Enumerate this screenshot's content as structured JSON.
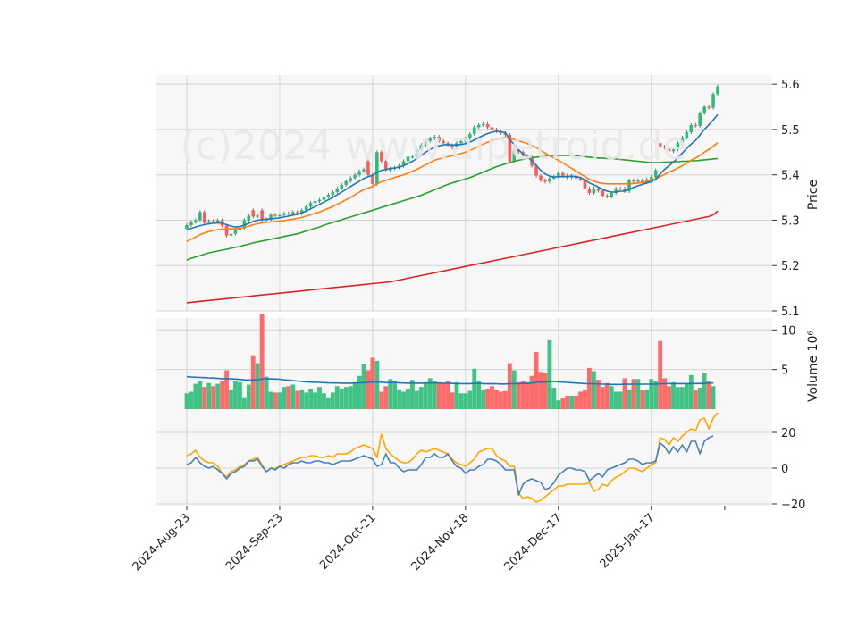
{
  "chart_data": {
    "type": "candlestick",
    "watermark": "(c)2024 www.aipetroid.de",
    "colors": {
      "up": "#2bbd78",
      "down": "#ff5a5a",
      "ma_short": "#1f77b4",
      "ma_mid": "#ff7f0e",
      "ma_long": "#2ca02c",
      "ma_longest": "#d62728",
      "volume_ma": "#1f77b4",
      "osc_fast": "#4682b4",
      "osc_slow": "#ffa500",
      "panel_bg": "#f7f7f7",
      "grid": "#d4d4d4"
    },
    "x_tick_labels": [
      "2024-Aug-23",
      "2024-Sep-23",
      "2024-Oct-21",
      "2024-Nov-18",
      "2024-Dec-17",
      "2025-Jan-17"
    ],
    "x_tick_indices": [
      0,
      21,
      42,
      63,
      84,
      105
    ],
    "price_panel": {
      "ylabel": "Price",
      "ylim": [
        5.1,
        5.62
      ],
      "yticks": [
        5.1,
        5.2,
        5.3,
        5.4,
        5.5,
        5.6
      ],
      "close": [
        5.289,
        5.296,
        5.3,
        5.318,
        5.294,
        5.298,
        5.296,
        5.3,
        5.288,
        5.266,
        5.27,
        5.278,
        5.282,
        5.3,
        5.31,
        5.308,
        5.31,
        5.3,
        5.302,
        5.312,
        5.311,
        5.311,
        5.315,
        5.314,
        5.318,
        5.315,
        5.322,
        5.33,
        5.338,
        5.342,
        5.345,
        5.352,
        5.356,
        5.362,
        5.37,
        5.378,
        5.386,
        5.393,
        5.4,
        5.408,
        5.412,
        5.4,
        5.38,
        5.45,
        5.43,
        5.41,
        5.414,
        5.416,
        5.42,
        5.43,
        5.44,
        5.44,
        5.455,
        5.466,
        5.475,
        5.48,
        5.484,
        5.475,
        5.47,
        5.465,
        5.46,
        5.47,
        5.474,
        5.48,
        5.49,
        5.505,
        5.51,
        5.512,
        5.505,
        5.5,
        5.496,
        5.492,
        5.488,
        5.43,
        5.455,
        5.45,
        5.442,
        5.44,
        5.42,
        5.398,
        5.388,
        5.385,
        5.392,
        5.396,
        5.404,
        5.398,
        5.394,
        5.398,
        5.392,
        5.39,
        5.37,
        5.36,
        5.37,
        5.365,
        5.354,
        5.352,
        5.36,
        5.37,
        5.37,
        5.364,
        5.388,
        5.385,
        5.388,
        5.383,
        5.39,
        5.395,
        5.41,
        5.462,
        5.46,
        5.452,
        5.456,
        5.47,
        5.482,
        5.494,
        5.51,
        5.508,
        5.536,
        5.55,
        5.548,
        5.578,
        5.595
      ],
      "open": [
        5.281,
        5.289,
        5.296,
        5.3,
        5.318,
        5.294,
        5.298,
        5.296,
        5.3,
        5.288,
        5.266,
        5.27,
        5.278,
        5.282,
        5.3,
        5.322,
        5.308,
        5.322,
        5.3,
        5.302,
        5.312,
        5.311,
        5.311,
        5.315,
        5.314,
        5.318,
        5.315,
        5.322,
        5.33,
        5.338,
        5.342,
        5.345,
        5.352,
        5.356,
        5.362,
        5.37,
        5.378,
        5.386,
        5.393,
        5.4,
        5.408,
        5.43,
        5.4,
        5.38,
        5.45,
        5.43,
        5.41,
        5.414,
        5.416,
        5.42,
        5.43,
        5.44,
        5.44,
        5.455,
        5.466,
        5.475,
        5.48,
        5.484,
        5.475,
        5.47,
        5.465,
        5.46,
        5.47,
        5.474,
        5.48,
        5.49,
        5.505,
        5.51,
        5.512,
        5.505,
        5.5,
        5.496,
        5.492,
        5.488,
        5.43,
        5.455,
        5.45,
        5.442,
        5.44,
        5.42,
        5.398,
        5.388,
        5.385,
        5.392,
        5.396,
        5.404,
        5.398,
        5.394,
        5.398,
        5.392,
        5.39,
        5.37,
        5.36,
        5.37,
        5.365,
        5.354,
        5.352,
        5.36,
        5.37,
        5.37,
        5.364,
        5.388,
        5.385,
        5.388,
        5.383,
        5.39,
        5.395,
        5.47,
        5.462,
        5.46,
        5.452,
        5.456,
        5.47,
        5.482,
        5.494,
        5.51,
        5.508,
        5.536,
        5.55,
        5.548,
        5.578
      ],
      "ma_short": [
        5.278,
        5.282,
        5.285,
        5.288,
        5.29,
        5.292,
        5.293,
        5.294,
        5.293,
        5.29,
        5.287,
        5.285,
        5.286,
        5.289,
        5.293,
        5.297,
        5.3,
        5.301,
        5.302,
        5.303,
        5.304,
        5.305,
        5.307,
        5.309,
        5.311,
        5.313,
        5.316,
        5.32,
        5.325,
        5.33,
        5.335,
        5.34,
        5.345,
        5.35,
        5.356,
        5.362,
        5.368,
        5.374,
        5.38,
        5.386,
        5.392,
        5.396,
        5.399,
        5.405,
        5.41,
        5.412,
        5.414,
        5.415,
        5.417,
        5.42,
        5.425,
        5.43,
        5.436,
        5.443,
        5.45,
        5.456,
        5.461,
        5.464,
        5.466,
        5.467,
        5.466,
        5.466,
        5.467,
        5.469,
        5.472,
        5.477,
        5.482,
        5.487,
        5.491,
        5.494,
        5.496,
        5.495,
        5.493,
        5.478,
        5.467,
        5.455,
        5.446,
        5.439,
        5.431,
        5.421,
        5.41,
        5.402,
        5.397,
        5.395,
        5.396,
        5.396,
        5.396,
        5.397,
        5.396,
        5.394,
        5.389,
        5.382,
        5.378,
        5.373,
        5.368,
        5.364,
        5.362,
        5.362,
        5.364,
        5.364,
        5.368,
        5.372,
        5.376,
        5.379,
        5.382,
        5.385,
        5.39,
        5.402,
        5.412,
        5.42,
        5.428,
        5.438,
        5.448,
        5.458,
        5.468,
        5.476,
        5.488,
        5.5,
        5.51,
        5.521,
        5.533
      ],
      "ma_mid": [
        5.253,
        5.258,
        5.263,
        5.268,
        5.272,
        5.275,
        5.277,
        5.279,
        5.28,
        5.281,
        5.281,
        5.281,
        5.282,
        5.284,
        5.287,
        5.29,
        5.292,
        5.294,
        5.295,
        5.296,
        5.297,
        5.298,
        5.299,
        5.301,
        5.302,
        5.304,
        5.306,
        5.309,
        5.312,
        5.315,
        5.318,
        5.322,
        5.326,
        5.33,
        5.335,
        5.34,
        5.345,
        5.35,
        5.356,
        5.362,
        5.367,
        5.371,
        5.374,
        5.38,
        5.385,
        5.388,
        5.391,
        5.394,
        5.397,
        5.4,
        5.404,
        5.408,
        5.412,
        5.417,
        5.422,
        5.427,
        5.432,
        5.435,
        5.438,
        5.44,
        5.442,
        5.444,
        5.447,
        5.45,
        5.454,
        5.458,
        5.463,
        5.468,
        5.472,
        5.476,
        5.479,
        5.481,
        5.482,
        5.48,
        5.478,
        5.475,
        5.472,
        5.469,
        5.465,
        5.46,
        5.454,
        5.448,
        5.442,
        5.437,
        5.432,
        5.426,
        5.42,
        5.414,
        5.408,
        5.402,
        5.396,
        5.39,
        5.386,
        5.383,
        5.381,
        5.38,
        5.38,
        5.38,
        5.38,
        5.38,
        5.38,
        5.381,
        5.382,
        5.383,
        5.385,
        5.388,
        5.391,
        5.396,
        5.401,
        5.406,
        5.41,
        5.415,
        5.42,
        5.426,
        5.432,
        5.437,
        5.443,
        5.45,
        5.456,
        5.463,
        5.471
      ],
      "ma_long": [
        5.212,
        5.216,
        5.219,
        5.222,
        5.225,
        5.228,
        5.23,
        5.232,
        5.234,
        5.236,
        5.238,
        5.24,
        5.242,
        5.245,
        5.247,
        5.25,
        5.252,
        5.254,
        5.256,
        5.258,
        5.26,
        5.262,
        5.264,
        5.266,
        5.268,
        5.27,
        5.273,
        5.276,
        5.279,
        5.282,
        5.285,
        5.289,
        5.292,
        5.295,
        5.298,
        5.301,
        5.304,
        5.307,
        5.31,
        5.313,
        5.316,
        5.319,
        5.322,
        5.325,
        5.328,
        5.331,
        5.334,
        5.337,
        5.34,
        5.343,
        5.346,
        5.349,
        5.352,
        5.355,
        5.359,
        5.363,
        5.367,
        5.371,
        5.375,
        5.379,
        5.382,
        5.385,
        5.388,
        5.391,
        5.394,
        5.398,
        5.402,
        5.406,
        5.41,
        5.414,
        5.418,
        5.421,
        5.424,
        5.427,
        5.43,
        5.432,
        5.434,
        5.436,
        5.438,
        5.439,
        5.44,
        5.441,
        5.442,
        5.443,
        5.443,
        5.443,
        5.443,
        5.443,
        5.442,
        5.441,
        5.44,
        5.439,
        5.438,
        5.437,
        5.437,
        5.436,
        5.436,
        5.435,
        5.434,
        5.433,
        5.432,
        5.431,
        5.43,
        5.429,
        5.428,
        5.427,
        5.427,
        5.427,
        5.428,
        5.428,
        5.429,
        5.429,
        5.43,
        5.43,
        5.431,
        5.431,
        5.432,
        5.433,
        5.434,
        5.435,
        5.436
      ],
      "ma_longest": [
        5.118,
        5.119,
        5.12,
        5.121,
        5.122,
        5.123,
        5.124,
        5.125,
        5.126,
        5.127,
        5.128,
        5.129,
        5.13,
        5.131,
        5.132,
        5.133,
        5.134,
        5.135,
        5.136,
        5.137,
        5.138,
        5.139,
        5.14,
        5.141,
        5.142,
        5.143,
        5.144,
        5.145,
        5.146,
        5.147,
        5.148,
        5.149,
        5.15,
        5.151,
        5.152,
        5.153,
        5.154,
        5.155,
        5.156,
        5.157,
        5.158,
        5.159,
        5.16,
        5.161,
        5.162,
        5.163,
        5.164,
        5.166,
        5.168,
        5.17,
        5.172,
        5.174,
        5.176,
        5.178,
        5.18,
        5.182,
        5.184,
        5.186,
        5.188,
        5.19,
        5.192,
        5.194,
        5.196,
        5.198,
        5.2,
        5.202,
        5.204,
        5.206,
        5.208,
        5.21,
        5.212,
        5.214,
        5.216,
        5.218,
        5.22,
        5.222,
        5.224,
        5.226,
        5.228,
        5.23,
        5.232,
        5.234,
        5.236,
        5.238,
        5.24,
        5.242,
        5.244,
        5.246,
        5.248,
        5.25,
        5.252,
        5.254,
        5.256,
        5.258,
        5.26,
        5.262,
        5.264,
        5.266,
        5.268,
        5.27,
        5.272,
        5.274,
        5.276,
        5.278,
        5.28,
        5.282,
        5.284,
        5.286,
        5.288,
        5.29,
        5.292,
        5.294,
        5.296,
        5.298,
        5.3,
        5.302,
        5.304,
        5.306,
        5.308,
        5.312,
        5.32
      ]
    },
    "volume_panel": {
      "ylabel": "Volume  10⁶",
      "ylim": [
        0,
        11.5
      ],
      "yticks": [
        5,
        10
      ],
      "values": [
        2,
        2.2,
        3.2,
        3.5,
        2.8,
        3.3,
        2.9,
        3.2,
        3.5,
        4.9,
        2.5,
        3.5,
        3.4,
        1.5,
        3.1,
        6.8,
        5.8,
        12,
        4.1,
        2.2,
        2.1,
        2.1,
        2.8,
        2.9,
        3.1,
        2.3,
        2.5,
        2.1,
        2.6,
        2.1,
        2.8,
        2,
        1.5,
        2.1,
        2.9,
        2.6,
        2.8,
        2.9,
        3.4,
        4.2,
        5.7,
        4.9,
        6.5,
        6.1,
        2.2,
        2.9,
        3.8,
        3.6,
        2.5,
        2.2,
        2.6,
        3.7,
        2.3,
        2.8,
        3.3,
        3.9,
        3.5,
        3.4,
        3.2,
        3.5,
        2.1,
        3.4,
        2,
        2,
        2.3,
        5.1,
        3.6,
        2.5,
        2.6,
        2.9,
        2.4,
        2.2,
        2.3,
        5.8,
        4.9,
        3.4,
        3.5,
        3.4,
        4.2,
        7.2,
        4.7,
        4.6,
        8.7,
        2.7,
        1.1,
        1.4,
        1.7,
        1.7,
        1.7,
        2.2,
        2.4,
        5.2,
        4.8,
        3.7,
        2.8,
        3.3,
        2.9,
        2.2,
        2.2,
        3.9,
        2.5,
        3.8,
        3.8,
        2.4,
        2.5,
        3.8,
        3.6,
        8.6,
        3.9,
        2.9,
        3.4,
        2.8,
        2.8,
        3.2,
        4.3,
        2.4,
        2.7,
        4.6,
        3.6,
        2.9
      ],
      "ma": [
        4.1,
        4.05,
        4.02,
        4,
        3.98,
        3.95,
        3.92,
        3.88,
        3.85,
        3.84,
        3.82,
        3.8,
        3.75,
        3.7,
        3.68,
        3.7,
        3.72,
        3.8,
        3.82,
        3.82,
        3.8,
        3.78,
        3.7,
        3.65,
        3.6,
        3.55,
        3.5,
        3.45,
        3.42,
        3.4,
        3.38,
        3.35,
        3.32,
        3.3,
        3.3,
        3.28,
        3.28,
        3.28,
        3.3,
        3.32,
        3.35,
        3.38,
        3.42,
        3.45,
        3.4,
        3.35,
        3.35,
        3.38,
        3.32,
        3.3,
        3.28,
        3.3,
        3.28,
        3.28,
        3.3,
        3.3,
        3.3,
        3.3,
        3.28,
        3.28,
        3.25,
        3.22,
        3.22,
        3.22,
        3.22,
        3.25,
        3.25,
        3.22,
        3.2,
        3.22,
        3.2,
        3.18,
        3.18,
        3.22,
        3.22,
        3.22,
        3.25,
        3.25,
        3.3,
        3.38,
        3.42,
        3.42,
        3.48,
        3.5,
        3.45,
        3.42,
        3.38,
        3.34,
        3.3,
        3.26,
        3.22,
        3.22,
        3.2,
        3.18,
        3.16,
        3.14,
        3.12,
        3.12,
        3.12,
        3.14,
        3.14,
        3.16,
        3.16,
        3.16,
        3.16,
        3.16,
        3.16,
        3.2,
        3.22,
        3.22,
        3.22,
        3.22,
        3.22,
        3.22,
        3.24,
        3.24,
        3.24,
        3.26,
        3.28,
        3.3
      ]
    },
    "oscillator_panel": {
      "ylim": [
        -21,
        33
      ],
      "yticks": [
        -20,
        0,
        20
      ],
      "fast": [
        2,
        3,
        6,
        3,
        1,
        0,
        1,
        -1,
        -3,
        -6,
        -3,
        -2,
        0,
        1,
        4,
        4,
        5,
        1,
        -2,
        0,
        -1,
        1,
        0,
        2,
        3,
        3,
        4,
        3,
        3,
        4,
        4,
        3,
        3,
        2,
        3,
        4,
        4,
        4,
        5,
        6,
        7,
        6,
        5,
        1,
        2,
        8,
        3,
        3,
        0,
        -2,
        -1,
        -1,
        -1,
        2,
        6,
        6,
        8,
        6,
        6,
        8,
        4,
        1,
        0,
        -3,
        -1,
        -1,
        1,
        2,
        5,
        5,
        4,
        2,
        -1,
        -1,
        -1,
        -15,
        -9,
        -7,
        -6,
        -7,
        -8,
        -12,
        -11,
        -8,
        -4,
        -2,
        0,
        0,
        -1,
        -1,
        -2,
        -7,
        -5,
        -3,
        -5,
        -1,
        0,
        1,
        2,
        3,
        5,
        5,
        4,
        2,
        3,
        3,
        4,
        14,
        12,
        8,
        12,
        9,
        13,
        9,
        15,
        15,
        8,
        15,
        17,
        18
      ],
      "slow": [
        7,
        8,
        10,
        6,
        4,
        3,
        3,
        1,
        -3,
        -5,
        -2,
        -1,
        1,
        2,
        4,
        5,
        6,
        2,
        -2,
        0,
        0,
        1,
        2,
        3,
        4,
        5,
        6,
        6,
        7,
        7,
        6,
        6,
        7,
        6,
        8,
        8,
        8,
        9,
        11,
        12,
        13,
        12,
        11,
        6,
        19,
        11,
        8,
        6,
        4,
        3,
        3,
        5,
        8,
        10,
        9,
        10,
        11,
        10,
        9,
        8,
        5,
        3,
        2,
        1,
        3,
        5,
        9,
        10,
        11,
        11,
        7,
        5,
        4,
        1,
        1,
        -14,
        -17,
        -16,
        -17,
        -19,
        -18,
        -16,
        -14,
        -12,
        -10,
        -10,
        -9,
        -9,
        -9,
        -9,
        -9,
        -8,
        -13,
        -12,
        -9,
        -10,
        -7,
        -5,
        -4,
        -2,
        0,
        0,
        -1,
        -2,
        0,
        2,
        3,
        17,
        16,
        13,
        17,
        15,
        18,
        20,
        22,
        21,
        27,
        28,
        22,
        28,
        31
      ]
    }
  }
}
